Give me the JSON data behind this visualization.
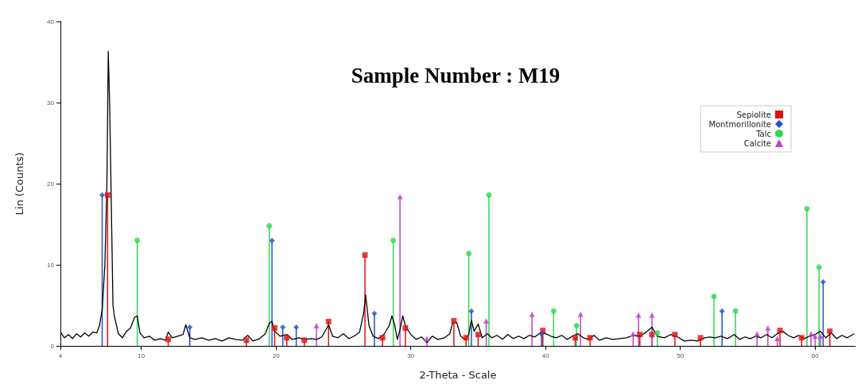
{
  "chart_data": {
    "type": "line",
    "title": "Sample Number : M19",
    "xlabel": "2-Theta - Scale",
    "ylabel": "Lin (Counts)",
    "xlim": [
      4,
      63
    ],
    "xticks": [
      4,
      10,
      20,
      30,
      40,
      50,
      60
    ],
    "ylim": [
      0,
      40
    ],
    "yticks": [
      0,
      10,
      20,
      30,
      40
    ],
    "legend": "top right",
    "series": [
      {
        "color": "#000000",
        "marker": "none",
        "x": [
          4.0,
          4.3,
          4.6,
          4.9,
          5.2,
          5.5,
          5.8,
          6.1,
          6.4,
          6.7,
          6.9,
          7.1,
          7.3,
          7.45,
          7.55,
          7.65,
          7.8,
          7.9,
          8.0,
          8.3,
          8.6,
          8.9,
          9.2,
          9.5,
          9.7,
          9.9,
          10.2,
          10.6,
          11.0,
          11.4,
          11.8,
          12.0,
          12.3,
          12.7,
          13.1,
          13.3,
          13.6,
          14.0,
          14.5,
          15.0,
          15.5,
          16.0,
          16.5,
          17.0,
          17.5,
          17.9,
          18.3,
          18.8,
          19.2,
          19.5,
          19.7,
          19.9,
          20.3,
          20.8,
          21.2,
          21.7,
          22.1,
          22.6,
          23.0,
          23.4,
          23.9,
          24.2,
          24.6,
          25.0,
          25.4,
          25.8,
          26.2,
          26.5,
          26.65,
          26.9,
          27.2,
          27.6,
          28.0,
          28.4,
          28.6,
          28.8,
          29.0,
          29.2,
          29.4,
          29.6,
          30.0,
          30.4,
          30.8,
          31.2,
          31.6,
          32.0,
          32.5,
          32.9,
          33.1,
          33.4,
          33.7,
          34.0,
          34.3,
          34.5,
          34.7,
          35.0,
          35.3,
          35.7,
          36.0,
          36.4,
          36.8,
          37.2,
          37.6,
          38.0,
          38.4,
          38.8,
          39.2,
          39.6,
          40.0,
          40.4,
          40.8,
          41.2,
          41.6,
          42.0,
          42.4,
          42.8,
          43.2,
          43.6,
          44.0,
          44.5,
          45.0,
          45.5,
          46.0,
          46.5,
          47.0,
          47.4,
          47.9,
          48.3,
          48.8,
          49.3,
          49.8,
          50.3,
          50.8,
          51.3,
          51.8,
          52.2,
          52.6,
          53.0,
          53.5,
          54.0,
          54.4,
          54.8,
          55.2,
          55.6,
          56.0,
          56.4,
          56.8,
          57.2,
          57.6,
          58.0,
          58.4,
          58.8,
          59.2,
          59.6,
          60.0,
          60.4,
          60.8,
          61.2,
          61.6,
          62.0,
          62.4,
          62.9
        ],
        "values": [
          1.7,
          1.0,
          1.4,
          0.9,
          1.5,
          1.1,
          1.6,
          1.2,
          1.7,
          1.6,
          2.5,
          4.5,
          10,
          20,
          36.3,
          30,
          15,
          5,
          3.7,
          1.5,
          1.0,
          1.8,
          2.2,
          3.5,
          3.7,
          1.6,
          1.0,
          1.2,
          0.7,
          0.9,
          0.7,
          1.7,
          1.0,
          1.2,
          1.4,
          2.6,
          1.0,
          0.8,
          1.0,
          0.7,
          0.9,
          0.6,
          1.0,
          0.8,
          0.7,
          1.3,
          0.6,
          0.9,
          1.5,
          2.8,
          3.0,
          1.8,
          1.2,
          1.4,
          0.8,
          1.0,
          0.8,
          0.9,
          0.8,
          1.1,
          2.6,
          1.2,
          1.0,
          1.5,
          0.9,
          1.2,
          1.7,
          4.0,
          6.3,
          2.5,
          1.2,
          0.9,
          1.4,
          2.5,
          3.7,
          2.6,
          0.8,
          2.0,
          3.7,
          2.5,
          1.4,
          0.8,
          1.1,
          0.4,
          1.2,
          0.8,
          1.0,
          1.5,
          2.8,
          2.9,
          1.2,
          0.8,
          1.4,
          3.2,
          1.8,
          2.7,
          1.0,
          1.5,
          1.0,
          1.3,
          0.8,
          1.4,
          0.9,
          1.2,
          0.9,
          1.3,
          1.1,
          1.6,
          1.5,
          1.2,
          1.0,
          1.3,
          0.8,
          1.2,
          1.5,
          1.0,
          0.8,
          1.3,
          0.7,
          1.0,
          0.8,
          0.9,
          1.0,
          1.3,
          1.2,
          1.6,
          2.3,
          1.2,
          1.0,
          1.4,
          1.1,
          0.6,
          0.7,
          0.6,
          1.0,
          1.1,
          1.0,
          1.2,
          0.9,
          1.4,
          0.8,
          1.1,
          0.9,
          1.2,
          1.0,
          1.4,
          1.0,
          1.5,
          1.8,
          1.3,
          1.0,
          1.3,
          0.9,
          1.2,
          1.4,
          1.8,
          1.0,
          1.6,
          0.9,
          1.3,
          1.0,
          1.5
        ]
      },
      {
        "type": "lollipop",
        "name": "Sepiolite",
        "color": "#e01010",
        "marker": "square",
        "x": [
          7.5,
          12.0,
          17.8,
          19.9,
          20.8,
          22.1,
          23.9,
          26.6,
          27.9,
          29.6,
          33.2,
          34.1,
          35.0,
          39.8,
          42.2,
          43.3,
          47.0,
          47.9,
          49.6,
          51.5,
          57.4,
          59.0,
          61.1
        ],
        "values": [
          18.6,
          0.8,
          0.7,
          2.2,
          1.0,
          0.7,
          3.0,
          11.2,
          1.0,
          2.2,
          3.1,
          1.0,
          1.4,
          1.9,
          1.0,
          1.0,
          1.4,
          1.4,
          1.4,
          1.0,
          1.9,
          1.0,
          1.8
        ]
      },
      {
        "type": "lollipop",
        "name": "Montmorillonite",
        "color": "#2050d0",
        "marker": "diamond",
        "x": [
          7.1,
          13.6,
          19.7,
          20.5,
          21.5,
          27.3,
          34.5,
          39.7,
          53.1,
          60.6
        ],
        "values": [
          18.6,
          2.3,
          13.0,
          2.3,
          2.3,
          4.0,
          4.3,
          1.5,
          4.3,
          7.9
        ]
      },
      {
        "type": "lollipop",
        "name": "Talc",
        "color": "#30d850",
        "marker": "circle",
        "x": [
          9.7,
          19.5,
          28.7,
          34.3,
          35.8,
          40.6,
          42.3,
          48.3,
          52.5,
          54.1,
          59.4,
          60.3
        ],
        "values": [
          13.0,
          14.8,
          13.0,
          11.4,
          18.6,
          4.3,
          2.5,
          1.6,
          6.1,
          4.3,
          16.9,
          9.7
        ]
      },
      {
        "type": "lollipop",
        "name": "Calcite",
        "color": "#c040d0",
        "marker": "triangle",
        "x": [
          23.0,
          29.2,
          31.2,
          35.6,
          39.0,
          42.6,
          46.5,
          46.9,
          47.9,
          55.7,
          56.5,
          57.2,
          59.7,
          60.0,
          60.4
        ],
        "values": [
          2.5,
          18.4,
          0.9,
          3.1,
          3.9,
          3.9,
          1.5,
          3.8,
          3.8,
          1.5,
          2.2,
          0.9,
          1.5,
          1.2,
          1.2
        ]
      }
    ]
  }
}
